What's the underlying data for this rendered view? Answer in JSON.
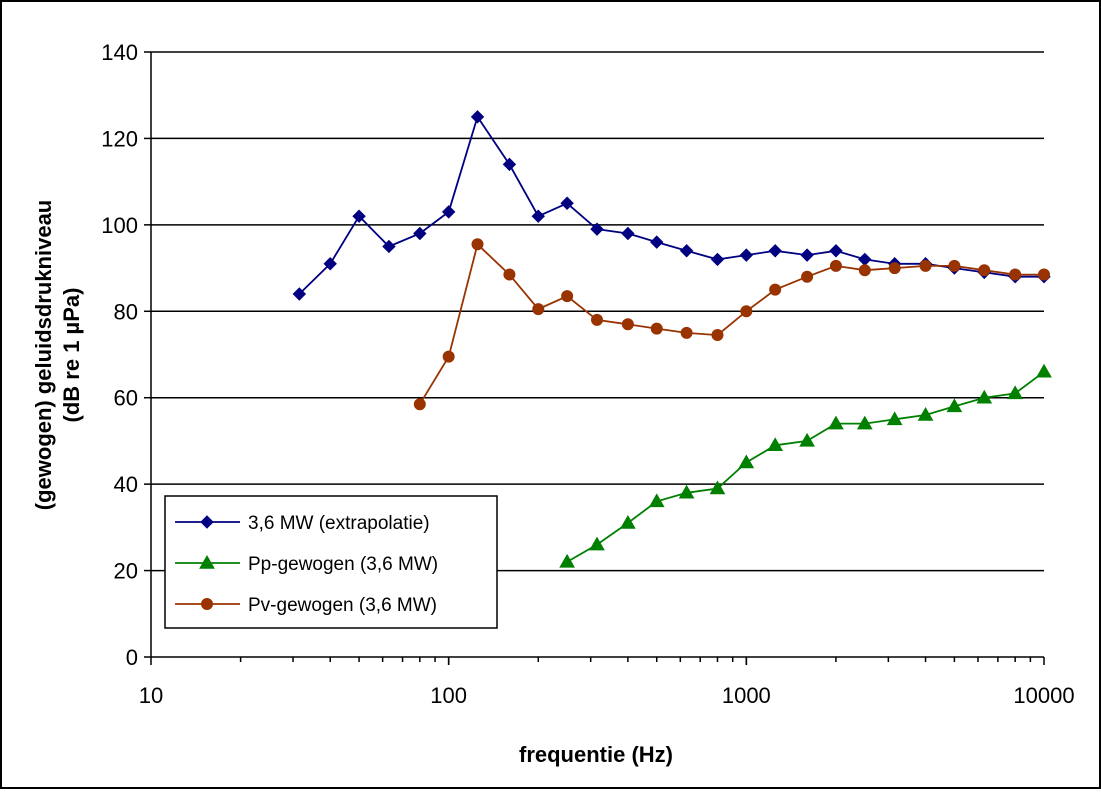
{
  "chart_data": {
    "type": "line",
    "title": "",
    "xlabel": "frequentie (Hz)",
    "ylabel_line1": "(gewogen) geluidsdrukniveau",
    "ylabel_line2": "(dB re 1 µPa)",
    "xscale": "log",
    "xlim": [
      10,
      10000
    ],
    "ylim": [
      0,
      140
    ],
    "yticks": [
      0,
      20,
      40,
      60,
      80,
      100,
      120,
      140
    ],
    "ytick_labels": [
      "0",
      "20",
      "40",
      "60",
      "80",
      "100",
      "120",
      "140"
    ],
    "xticks": [
      10,
      100,
      1000,
      10000
    ],
    "xtick_labels": [
      "10",
      "100",
      "1000",
      "10000"
    ],
    "grid": "horizontal",
    "legend_position": "bottom-left",
    "series": [
      {
        "name": "3,6 MW (extrapolatie)",
        "color": "#000080",
        "marker": "diamond",
        "x": [
          31.5,
          40,
          50,
          63,
          80,
          100,
          125,
          160,
          200,
          250,
          315,
          400,
          500,
          630,
          800,
          1000,
          1250,
          1600,
          2000,
          2500,
          3150,
          4000,
          5000,
          6300,
          8000,
          10000
        ],
        "y": [
          84,
          91,
          102,
          95,
          98,
          103,
          125,
          114,
          102,
          105,
          99,
          98,
          96,
          94,
          92,
          93,
          94,
          93,
          94,
          92,
          91,
          91,
          90,
          89,
          88,
          88
        ]
      },
      {
        "name": "Pp-gewogen (3,6 MW)",
        "color": "#008000",
        "marker": "triangle",
        "x": [
          250,
          315,
          400,
          500,
          630,
          800,
          1000,
          1250,
          1600,
          2000,
          2500,
          3150,
          4000,
          5000,
          6300,
          8000,
          10000
        ],
        "y": [
          22,
          26,
          31,
          36,
          38,
          39,
          45,
          49,
          50,
          54,
          54,
          55,
          56,
          58,
          60,
          61,
          66
        ]
      },
      {
        "name": "Pv-gewogen (3,6 MW)",
        "color": "#993300",
        "marker": "circle",
        "x": [
          80,
          100,
          125,
          160,
          200,
          250,
          315,
          400,
          500,
          630,
          800,
          1000,
          1250,
          1600,
          2000,
          2500,
          3150,
          4000,
          5000,
          6300,
          8000,
          10000
        ],
        "y": [
          58.5,
          69.5,
          95.5,
          88.5,
          80.5,
          83.5,
          78,
          77,
          76,
          75,
          74.5,
          80,
          85,
          88,
          90.5,
          89.5,
          90,
          90.5,
          90.5,
          89.5,
          88.5,
          88.5
        ]
      }
    ]
  }
}
